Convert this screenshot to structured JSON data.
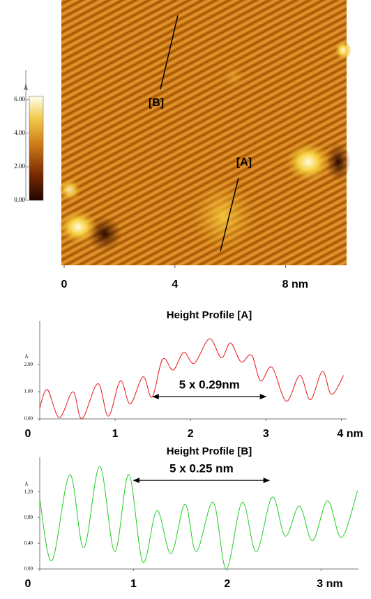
{
  "chart_data": [
    {
      "type": "image",
      "annotations": [
        "[B]",
        "[A]"
      ],
      "colorbar": {
        "label": "Å",
        "clim": [
          0,
          6.2
        ],
        "ticks": [
          {
            "value": 0,
            "label": "0.00"
          },
          {
            "value": 2,
            "label": "2.00"
          },
          {
            "value": 4,
            "label": "4.00"
          },
          {
            "value": 6,
            "label": "6.00"
          }
        ]
      },
      "xlim": [
        0,
        10.2
      ],
      "xticks": [
        0,
        4,
        {
          "value": 8,
          "label": "8 nm"
        }
      ]
    },
    {
      "type": "line",
      "title": "Height Profile [A]",
      "ylabel": "Å",
      "x": [
        0,
        0.1,
        0.26,
        0.44,
        0.56,
        0.77,
        0.91,
        1.07,
        1.2,
        1.37,
        1.49,
        1.63,
        1.77,
        1.91,
        2.05,
        2.25,
        2.41,
        2.53,
        2.67,
        2.81,
        2.93,
        3.08,
        3.27,
        3.45,
        3.59,
        3.75,
        3.87,
        4.03
      ],
      "series": [
        {
          "color": "#e8141c",
          "values": [
            0.4,
            1.08,
            0.05,
            1.0,
            0,
            1.3,
            0.1,
            1.4,
            0.55,
            1.55,
            0.8,
            2.2,
            1.8,
            2.45,
            2.05,
            2.95,
            2.25,
            2.8,
            2.1,
            2.35,
            1.4,
            1.9,
            0.65,
            1.6,
            0.7,
            1.75,
            0.9,
            1.6
          ]
        }
      ],
      "xlim": [
        0,
        4.07
      ],
      "ylim": [
        0,
        3.6
      ],
      "xticks": [
        0,
        1,
        2,
        3,
        {
          "value": 4,
          "label": "4 nm"
        }
      ],
      "yticks": [
        {
          "value": 0,
          "label": "0.00"
        },
        {
          "value": 1,
          "label": "1.00"
        },
        {
          "value": 2,
          "label": "2.00"
        }
      ],
      "annotations": [
        {
          "text": "5 x 0.29nm",
          "x": [
            1.5,
            3.0
          ],
          "y": 0.82
        }
      ]
    },
    {
      "type": "line",
      "title": "Height Profile [B]",
      "ylabel": "Å",
      "x": [
        0,
        0.13,
        0.32,
        0.47,
        0.64,
        0.8,
        0.95,
        1.1,
        1.25,
        1.4,
        1.55,
        1.67,
        1.85,
        1.99,
        2.16,
        2.31,
        2.48,
        2.62,
        2.77,
        2.91,
        3.07,
        3.22,
        3.39
      ],
      "series": [
        {
          "color": "#22cc22",
          "values": [
            1.09,
            0.13,
            1.47,
            0.33,
            1.6,
            0.27,
            1.47,
            0.11,
            0.91,
            0.24,
            1.01,
            0.27,
            1.04,
            0,
            1.04,
            0.27,
            1.12,
            0.51,
            0.98,
            0.44,
            1.06,
            0.49,
            1.22
          ]
        }
      ],
      "xlim": [
        0,
        3.4
      ],
      "ylim": [
        0,
        1.74
      ],
      "xticks": [
        0,
        1,
        2,
        {
          "value": 3,
          "label": "3 nm"
        }
      ],
      "yticks": [
        {
          "value": 0,
          "label": "0.00"
        },
        {
          "value": 0.4,
          "label": "0.40"
        },
        {
          "value": 0.8,
          "label": "0.80"
        },
        {
          "value": 1.2,
          "label": "1.20"
        }
      ],
      "annotations": [
        {
          "text": "5 x 0.25 nm",
          "x": [
            1.0,
            2.45
          ],
          "y": 1.38
        }
      ]
    }
  ]
}
